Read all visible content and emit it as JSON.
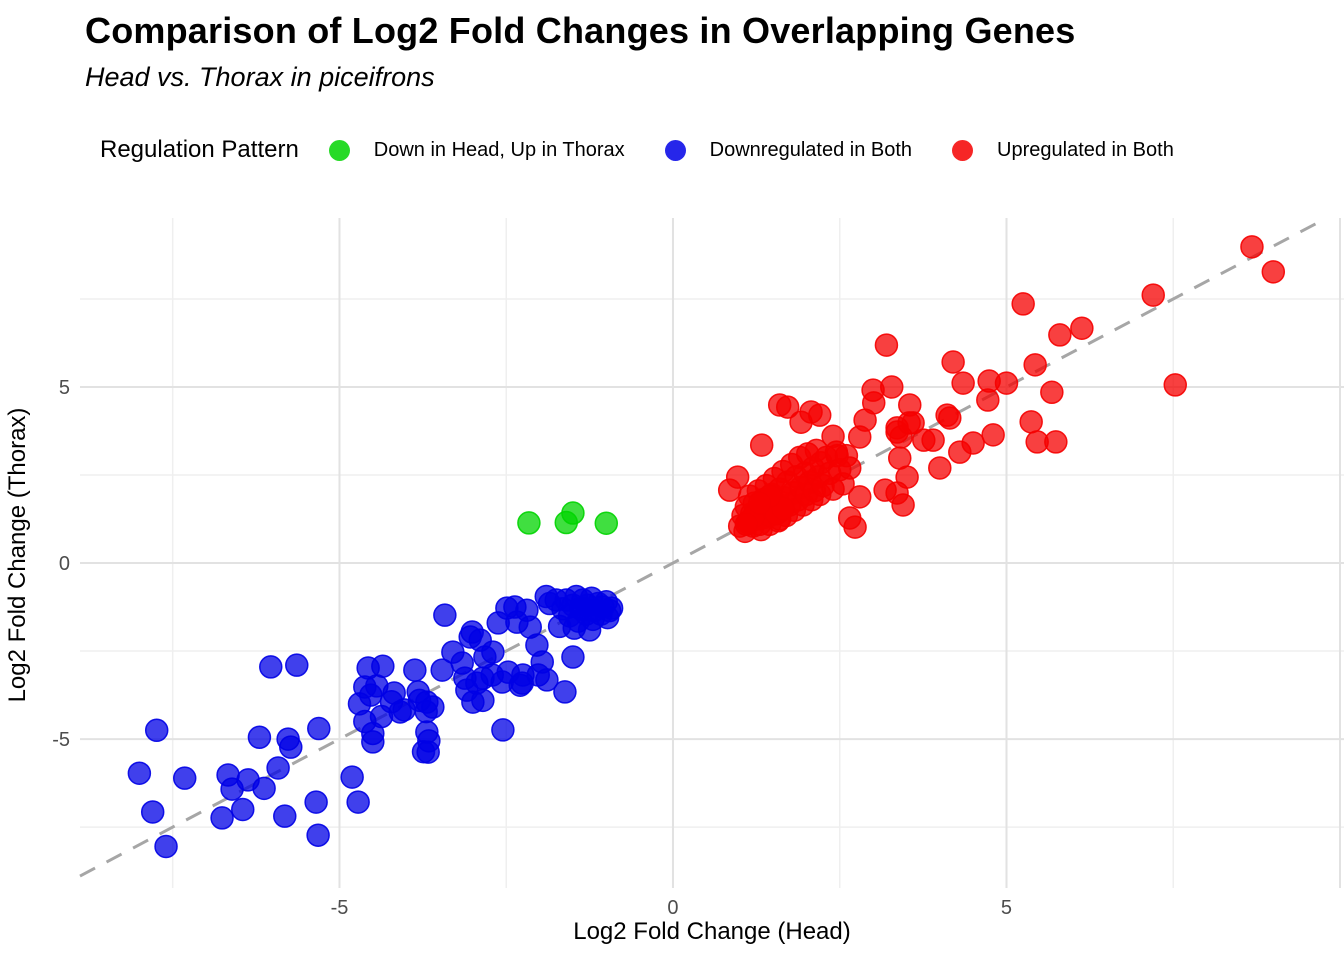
{
  "title": "Comparison of Log2 Fold Changes in Overlapping Genes",
  "subtitle": "Head vs. Thorax in piceifrons",
  "legend": {
    "title": "Regulation Pattern",
    "items": [
      {
        "label": "Down in Head, Up in Thorax",
        "color": "#00D400"
      },
      {
        "label": "Downregulated in Both",
        "color": "#0000E6"
      },
      {
        "label": "Upregulated in Both",
        "color": "#F50000"
      }
    ]
  },
  "axes": {
    "x_title": "Log2 Fold Change (Head)",
    "y_title": "Log2 Fold Change (Thorax)",
    "tick_color": "#4D4D4D"
  },
  "chart_data": {
    "type": "scatter",
    "title": "Comparison of Log2 Fold Changes in Overlapping Genes",
    "subtitle": "Head vs. Thorax in piceifrons",
    "xlabel": "Log2 Fold Change (Head)",
    "ylabel": "Log2 Fold Change (Thorax)",
    "xlim": [
      -8.89,
      10.06
    ],
    "ylim": [
      -9.23,
      9.8
    ],
    "x_ticks": [
      -5,
      0,
      5
    ],
    "y_ticks": [
      -5,
      0,
      5
    ],
    "x_grid_major": [
      -5,
      0,
      5,
      10
    ],
    "y_grid_major": [
      -5,
      0,
      5
    ],
    "x_grid_minor": [
      -7.5,
      -2.5,
      2.5,
      7.5
    ],
    "y_grid_minor": [
      -7.5,
      -2.5,
      2.5,
      7.5
    ],
    "grid": true,
    "legend_position": "top",
    "reference_line": {
      "type": "identity",
      "slope": 1,
      "intercept": 0,
      "style": "dashed",
      "color": "#A6A6A6"
    },
    "point_radius": 11,
    "point_opacity": 0.75,
    "series": [
      {
        "name": "Down in Head, Up in Thorax",
        "color": "#00D400",
        "points": [
          [
            -2.16,
            1.14
          ],
          [
            -1.6,
            1.15
          ],
          [
            -1.5,
            1.42
          ],
          [
            -1.0,
            1.13
          ]
        ]
      },
      {
        "name": "Downregulated in Both",
        "color": "#0000E6",
        "points": [
          [
            -8.0,
            -5.97
          ],
          [
            -7.74,
            -4.75
          ],
          [
            -7.32,
            -6.11
          ],
          [
            -7.8,
            -7.07
          ],
          [
            -7.6,
            -8.05
          ],
          [
            -6.67,
            -6.02
          ],
          [
            -6.61,
            -6.42
          ],
          [
            -6.37,
            -6.16
          ],
          [
            -6.13,
            -6.4
          ],
          [
            -5.92,
            -5.82
          ],
          [
            -6.76,
            -7.24
          ],
          [
            -6.45,
            -7.0
          ],
          [
            -5.82,
            -7.19
          ],
          [
            -5.35,
            -6.79
          ],
          [
            -5.32,
            -7.73
          ],
          [
            -4.81,
            -6.08
          ],
          [
            -4.72,
            -6.79
          ],
          [
            -6.2,
            -4.95
          ],
          [
            -5.77,
            -5.0
          ],
          [
            -5.73,
            -5.23
          ],
          [
            -5.31,
            -4.7
          ],
          [
            -6.03,
            -2.95
          ],
          [
            -5.64,
            -2.9
          ],
          [
            -4.7,
            -4.0
          ],
          [
            -4.53,
            -3.75
          ],
          [
            -4.62,
            -4.5
          ],
          [
            -4.5,
            -4.84
          ],
          [
            -4.37,
            -4.36
          ],
          [
            -4.22,
            -3.94
          ],
          [
            -4.03,
            -4.17
          ],
          [
            -3.8,
            -3.9
          ],
          [
            -3.7,
            -4.22
          ],
          [
            -3.74,
            -5.36
          ],
          [
            -3.66,
            -5.05
          ],
          [
            -4.57,
            -2.98
          ],
          [
            -4.35,
            -2.93
          ],
          [
            -4.62,
            -3.52
          ],
          [
            -4.44,
            -3.49
          ],
          [
            -4.18,
            -3.69
          ],
          [
            -4.5,
            -5.08
          ],
          [
            -4.09,
            -4.23
          ],
          [
            -3.87,
            -3.04
          ],
          [
            -3.82,
            -3.66
          ],
          [
            -3.69,
            -3.95
          ],
          [
            -3.6,
            -4.09
          ],
          [
            -3.46,
            -3.04
          ],
          [
            -3.69,
            -4.8
          ],
          [
            -3.67,
            -5.37
          ],
          [
            -3.3,
            -2.53
          ],
          [
            -3.04,
            -2.1
          ],
          [
            -2.89,
            -2.19
          ],
          [
            -3.12,
            -3.27
          ],
          [
            -3.09,
            -3.61
          ],
          [
            -2.94,
            -3.41
          ],
          [
            -2.85,
            -3.27
          ],
          [
            -3.0,
            -3.95
          ],
          [
            -2.82,
            -2.67
          ],
          [
            -2.7,
            -2.53
          ],
          [
            -2.62,
            -1.7
          ],
          [
            -2.49,
            -1.28
          ],
          [
            -2.37,
            -1.25
          ],
          [
            -2.34,
            -1.68
          ],
          [
            -2.19,
            -1.34
          ],
          [
            -2.14,
            -1.82
          ],
          [
            -2.04,
            -2.33
          ],
          [
            -1.96,
            -2.81
          ],
          [
            -2.26,
            -3.41
          ],
          [
            -2.55,
            -4.74
          ],
          [
            -2.85,
            -3.9
          ],
          [
            -2.56,
            -3.38
          ],
          [
            -2.71,
            -3.18
          ],
          [
            -2.47,
            -3.1
          ],
          [
            -2.29,
            -3.47
          ],
          [
            -2.25,
            -3.18
          ],
          [
            -2.02,
            -3.18
          ],
          [
            -1.89,
            -3.32
          ],
          [
            -1.62,
            -3.66
          ],
          [
            -1.5,
            -2.67
          ],
          [
            -3.42,
            -1.48
          ],
          [
            -3.01,
            -1.96
          ],
          [
            -3.16,
            -2.84
          ],
          [
            -1.75,
            -1.05
          ],
          [
            -1.65,
            -1.3
          ],
          [
            -1.6,
            -1.05
          ],
          [
            -1.55,
            -1.5
          ],
          [
            -1.5,
            -1.2
          ],
          [
            -1.45,
            -0.95
          ],
          [
            -1.42,
            -1.65
          ],
          [
            -1.38,
            -1.3
          ],
          [
            -1.35,
            -1.05
          ],
          [
            -1.3,
            -1.45
          ],
          [
            -1.28,
            -1.2
          ],
          [
            -1.22,
            -1.0
          ],
          [
            -1.2,
            -1.6
          ],
          [
            -1.18,
            -1.35
          ],
          [
            -1.12,
            -1.15
          ],
          [
            -1.08,
            -1.45
          ],
          [
            -1.05,
            -1.25
          ],
          [
            -1.0,
            -1.1
          ],
          [
            -0.98,
            -1.55
          ],
          [
            -0.95,
            -1.35
          ],
          [
            -1.7,
            -1.8
          ],
          [
            -1.48,
            -1.85
          ],
          [
            -1.25,
            -1.9
          ],
          [
            -1.85,
            -1.15
          ],
          [
            -1.9,
            -0.95
          ],
          [
            -0.92,
            -1.28
          ]
        ]
      },
      {
        "name": "Upregulated in Both",
        "color": "#F50000",
        "points": [
          [
            8.68,
            8.98
          ],
          [
            9.0,
            8.27
          ],
          [
            7.2,
            7.61
          ],
          [
            5.25,
            7.36
          ],
          [
            5.8,
            6.48
          ],
          [
            6.13,
            6.67
          ],
          [
            3.2,
            6.19
          ],
          [
            5.43,
            5.63
          ],
          [
            5.0,
            5.11
          ],
          [
            5.68,
            4.85
          ],
          [
            5.37,
            4.01
          ],
          [
            5.46,
            3.44
          ],
          [
            5.74,
            3.44
          ],
          [
            7.53,
            5.06
          ],
          [
            4.2,
            5.71
          ],
          [
            4.35,
            5.11
          ],
          [
            4.74,
            5.17
          ],
          [
            3.0,
            4.91
          ],
          [
            3.28,
            5.0
          ],
          [
            3.01,
            4.55
          ],
          [
            3.55,
            4.49
          ],
          [
            3.6,
            3.98
          ],
          [
            4.15,
            4.12
          ],
          [
            4.72,
            4.63
          ],
          [
            4.8,
            3.64
          ],
          [
            2.07,
            4.29
          ],
          [
            2.2,
            4.2
          ],
          [
            1.92,
            4.0
          ],
          [
            1.72,
            4.43
          ],
          [
            1.6,
            4.49
          ],
          [
            2.88,
            4.06
          ],
          [
            2.8,
            3.58
          ],
          [
            3.36,
            3.84
          ],
          [
            3.42,
            3.58
          ],
          [
            3.76,
            3.49
          ],
          [
            3.36,
            3.72
          ],
          [
            3.54,
            3.98
          ],
          [
            3.9,
            3.49
          ],
          [
            4.11,
            4.2
          ],
          [
            4.3,
            3.15
          ],
          [
            4.5,
            3.41
          ],
          [
            4.0,
            2.7
          ],
          [
            3.4,
            2.98
          ],
          [
            3.51,
            2.44
          ],
          [
            3.36,
            1.99
          ],
          [
            3.18,
            2.07
          ],
          [
            3.45,
            1.65
          ],
          [
            2.8,
            1.88
          ],
          [
            2.73,
            1.02
          ],
          [
            2.65,
            1.28
          ],
          [
            1.33,
            3.35
          ],
          [
            2.4,
            3.6
          ],
          [
            2.46,
            3.05
          ],
          [
            0.97,
            2.44
          ],
          [
            0.85,
            2.07
          ],
          [
            1.0,
            1.05
          ],
          [
            1.05,
            1.35
          ],
          [
            1.08,
            0.9
          ],
          [
            1.1,
            1.6
          ],
          [
            1.12,
            1.15
          ],
          [
            1.15,
            1.9
          ],
          [
            1.18,
            1.4
          ],
          [
            1.2,
            1.05
          ],
          [
            1.22,
            1.7
          ],
          [
            1.25,
            1.25
          ],
          [
            1.28,
            2.05
          ],
          [
            1.3,
            1.5
          ],
          [
            1.32,
            0.95
          ],
          [
            1.35,
            1.8
          ],
          [
            1.38,
            1.3
          ],
          [
            1.4,
            2.2
          ],
          [
            1.42,
            1.55
          ],
          [
            1.45,
            1.1
          ],
          [
            1.48,
            1.95
          ],
          [
            1.5,
            1.45
          ],
          [
            1.52,
            2.4
          ],
          [
            1.55,
            1.7
          ],
          [
            1.58,
            1.2
          ],
          [
            1.6,
            2.1
          ],
          [
            1.62,
            1.5
          ],
          [
            1.65,
            2.6
          ],
          [
            1.68,
            1.85
          ],
          [
            1.7,
            1.35
          ],
          [
            1.72,
            2.3
          ],
          [
            1.75,
            1.65
          ],
          [
            1.78,
            2.8
          ],
          [
            1.8,
            2.0
          ],
          [
            1.82,
            1.5
          ],
          [
            1.85,
            2.45
          ],
          [
            1.88,
            1.8
          ],
          [
            1.9,
            3.0
          ],
          [
            1.92,
            2.15
          ],
          [
            1.95,
            1.65
          ],
          [
            1.98,
            2.55
          ],
          [
            2.0,
            1.95
          ],
          [
            2.02,
            3.1
          ],
          [
            2.05,
            2.3
          ],
          [
            2.08,
            1.8
          ],
          [
            2.1,
            2.7
          ],
          [
            2.12,
            2.05
          ],
          [
            2.15,
            3.2
          ],
          [
            2.18,
            2.45
          ],
          [
            2.2,
            1.95
          ],
          [
            2.22,
            2.85
          ],
          [
            2.25,
            2.2
          ],
          [
            2.3,
            3.0
          ],
          [
            2.35,
            2.55
          ],
          [
            2.4,
            2.1
          ],
          [
            2.45,
            3.15
          ],
          [
            2.5,
            2.65
          ],
          [
            2.55,
            2.25
          ],
          [
            2.6,
            3.05
          ],
          [
            2.65,
            2.7
          ],
          [
            1.15,
            1.2
          ],
          [
            1.3,
            1.1
          ],
          [
            1.45,
            1.35
          ],
          [
            1.6,
            1.25
          ],
          [
            1.35,
            1.55
          ],
          [
            1.25,
            1.45
          ],
          [
            1.5,
            1.6
          ],
          [
            1.4,
            1.75
          ],
          [
            1.2,
            1.3
          ],
          [
            1.1,
            1.1
          ],
          [
            1.55,
            1.4
          ],
          [
            1.65,
            1.55
          ],
          [
            1.45,
            1.9
          ],
          [
            1.3,
            1.7
          ]
        ]
      }
    ]
  }
}
